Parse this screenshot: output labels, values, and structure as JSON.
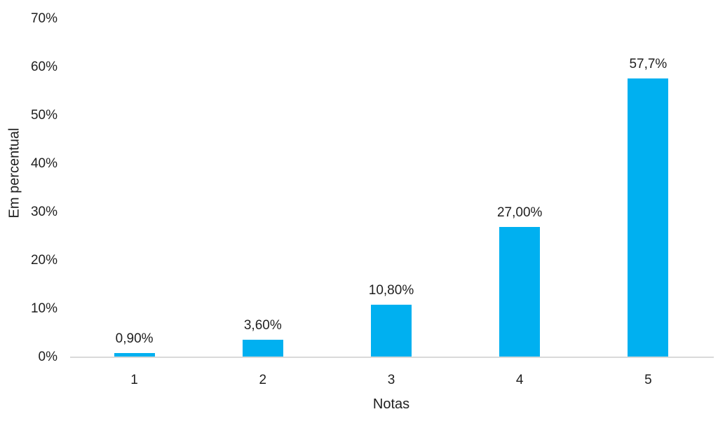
{
  "chart_data": {
    "type": "bar",
    "title": "",
    "categories": [
      "1",
      "2",
      "3",
      "4",
      "5"
    ],
    "values": [
      0.9,
      3.6,
      10.8,
      27.0,
      57.7
    ],
    "data_labels": [
      "0,90%",
      "3,60%",
      "10,80%",
      "27,00%",
      "57,7%"
    ],
    "xlabel": "Notas",
    "ylabel": "Em percentual",
    "ylim": [
      0,
      70
    ],
    "ytick_step": 10,
    "ytick_labels": [
      "0%",
      "10%",
      "20%",
      "30%",
      "40%",
      "50%",
      "60%",
      "70%"
    ],
    "grid": false,
    "legend": "none",
    "colors": {
      "bar": "#00B0F0",
      "axis_line": "#D9D9D9",
      "text": "#1F1F1F"
    }
  }
}
